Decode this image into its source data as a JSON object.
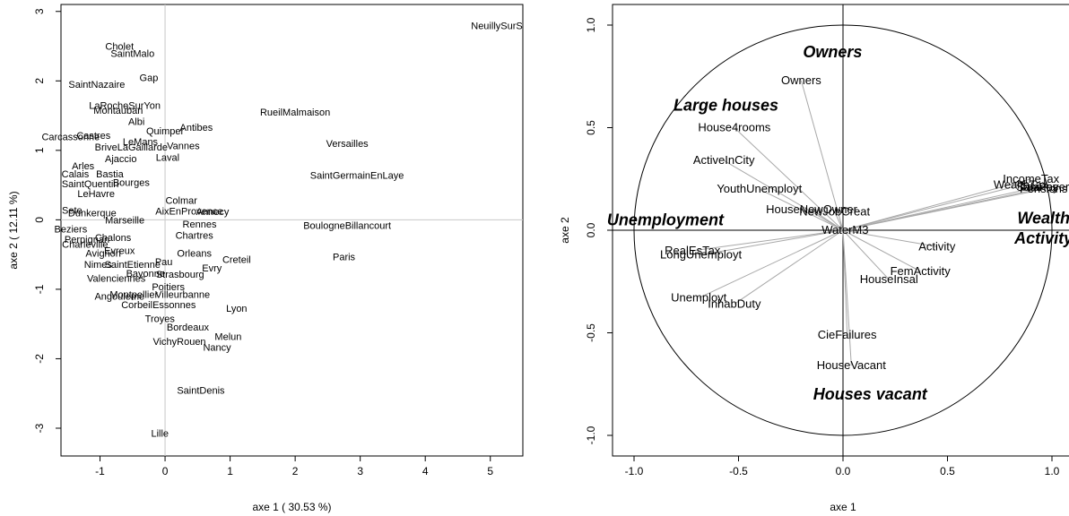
{
  "chart_data": [
    {
      "type": "scatter",
      "title": "",
      "xlabel": "axe 1 ( 30.53 %)",
      "ylabel": "axe 2 ( 12.11 %)",
      "xlim": [
        -1.6,
        5.5
      ],
      "ylim": [
        -3.4,
        3.1
      ],
      "xticks": [
        -1,
        0,
        1,
        2,
        3,
        4,
        5
      ],
      "yticks": [
        -3,
        -2,
        -1,
        0,
        1,
        2,
        3
      ],
      "reference_lines": {
        "x": 0,
        "y": 0,
        "color": "#c8c8c8"
      },
      "point_color": "#000000",
      "points": [
        {
          "label": "NeuillySurS",
          "x": 5.1,
          "y": 2.8
        },
        {
          "label": "Cholet",
          "x": -0.7,
          "y": 2.5
        },
        {
          "label": "SaintMalo",
          "x": -0.5,
          "y": 2.4
        },
        {
          "label": "Gap",
          "x": -0.25,
          "y": 2.05
        },
        {
          "label": "SaintNazaire",
          "x": -1.05,
          "y": 1.95
        },
        {
          "label": "LaRocheSurYon",
          "x": -0.62,
          "y": 1.65
        },
        {
          "label": "Montauban",
          "x": -0.72,
          "y": 1.58
        },
        {
          "label": "RueilMalmaison",
          "x": 2.0,
          "y": 1.55
        },
        {
          "label": "Albi",
          "x": -0.44,
          "y": 1.42
        },
        {
          "label": "Antibes",
          "x": 0.48,
          "y": 1.33
        },
        {
          "label": "Quimper",
          "x": 0.0,
          "y": 1.28
        },
        {
          "label": "Carcassonne",
          "x": -1.45,
          "y": 1.2
        },
        {
          "label": "Castres",
          "x": -1.1,
          "y": 1.22
        },
        {
          "label": "LeMans",
          "x": -0.38,
          "y": 1.13
        },
        {
          "label": "Vannes",
          "x": 0.28,
          "y": 1.07
        },
        {
          "label": "Versailles",
          "x": 2.8,
          "y": 1.1
        },
        {
          "label": "BriveLaGaillarde",
          "x": -0.52,
          "y": 1.05
        },
        {
          "label": "Laval",
          "x": 0.04,
          "y": 0.9
        },
        {
          "label": "Ajaccio",
          "x": -0.68,
          "y": 0.88
        },
        {
          "label": "Arles",
          "x": -1.26,
          "y": 0.78
        },
        {
          "label": "SaintGermainEnLaye",
          "x": 2.95,
          "y": 0.64
        },
        {
          "label": "Calais",
          "x": -1.38,
          "y": 0.66
        },
        {
          "label": "Bastia",
          "x": -0.85,
          "y": 0.66
        },
        {
          "label": "SaintQuentin",
          "x": -1.15,
          "y": 0.52
        },
        {
          "label": "Bourges",
          "x": -0.52,
          "y": 0.54
        },
        {
          "label": "LeHavre",
          "x": -1.06,
          "y": 0.38
        },
        {
          "label": "Beziers",
          "x": -1.45,
          "y": -0.13
        },
        {
          "label": "Sete",
          "x": -1.43,
          "y": 0.14
        },
        {
          "label": "Dunkerque",
          "x": -1.12,
          "y": 0.1
        },
        {
          "label": "Colmar",
          "x": 0.25,
          "y": 0.28
        },
        {
          "label": "AixEnProvence",
          "x": 0.37,
          "y": 0.13
        },
        {
          "label": "Annecy",
          "x": 0.73,
          "y": 0.12
        },
        {
          "label": "Marseille",
          "x": -0.62,
          "y": 0.0
        },
        {
          "label": "Rennes",
          "x": 0.53,
          "y": -0.06
        },
        {
          "label": "BoulogneBillancourt",
          "x": 2.8,
          "y": -0.08
        },
        {
          "label": "Perpignan",
          "x": -1.2,
          "y": -0.28
        },
        {
          "label": "Charleville",
          "x": -1.23,
          "y": -0.35
        },
        {
          "label": "Chalons",
          "x": -0.8,
          "y": -0.25
        },
        {
          "label": "Chartres",
          "x": 0.45,
          "y": -0.22
        },
        {
          "label": "Avignon",
          "x": -0.95,
          "y": -0.48
        },
        {
          "label": "Evreux",
          "x": -0.7,
          "y": -0.44
        },
        {
          "label": "Orleans",
          "x": 0.45,
          "y": -0.48
        },
        {
          "label": "Creteil",
          "x": 1.1,
          "y": -0.57
        },
        {
          "label": "Paris",
          "x": 2.75,
          "y": -0.53
        },
        {
          "label": "Nimes",
          "x": -1.03,
          "y": -0.64
        },
        {
          "label": "SaintEtienne",
          "x": -0.5,
          "y": -0.64
        },
        {
          "label": "Pau",
          "x": -0.02,
          "y": -0.6
        },
        {
          "label": "Evry",
          "x": 0.72,
          "y": -0.69
        },
        {
          "label": "Bayonne",
          "x": -0.3,
          "y": -0.77
        },
        {
          "label": "Strasbourg",
          "x": 0.23,
          "y": -0.78
        },
        {
          "label": "Valenciennes",
          "x": -0.75,
          "y": -0.84
        },
        {
          "label": "Poitiers",
          "x": 0.05,
          "y": -0.96
        },
        {
          "label": "Montpellier",
          "x": -0.48,
          "y": -1.07
        },
        {
          "label": "Angouleme",
          "x": -0.7,
          "y": -1.1
        },
        {
          "label": "Villeurbanne",
          "x": 0.27,
          "y": -1.07
        },
        {
          "label": "CorbeilEssonnes",
          "x": -0.1,
          "y": -1.22
        },
        {
          "label": "Lyon",
          "x": 1.1,
          "y": -1.27
        },
        {
          "label": "Troyes",
          "x": -0.08,
          "y": -1.42
        },
        {
          "label": "Bordeaux",
          "x": 0.35,
          "y": -1.54
        },
        {
          "label": "Melun",
          "x": 0.97,
          "y": -1.68
        },
        {
          "label": "VichyRouen",
          "x": 0.22,
          "y": -1.75
        },
        {
          "label": "Nancy",
          "x": 0.8,
          "y": -1.83
        },
        {
          "label": "SaintDenis",
          "x": 0.55,
          "y": -2.45
        },
        {
          "label": "Lille",
          "x": -0.08,
          "y": -3.07
        }
      ]
    },
    {
      "type": "scatter",
      "title": "",
      "xlabel": "axe 1",
      "ylabel": "axe 2",
      "xlim": [
        -1.0,
        1.0
      ],
      "ylim": [
        -1.0,
        1.0
      ],
      "xticks": [
        "-1.0",
        "-0.5",
        "0.0",
        "0.5",
        "1.0"
      ],
      "yticks": [
        "-1.0",
        "-0.5",
        "0.0",
        "0.5",
        "1.0"
      ],
      "unit_circle": true,
      "arrow_color": "#a8a8a8",
      "variables": [
        {
          "label": "Owners",
          "x": -0.2,
          "y": 0.73
        },
        {
          "label": "House4rooms",
          "x": -0.52,
          "y": 0.5
        },
        {
          "label": "ActiveInCity",
          "x": -0.57,
          "y": 0.34
        },
        {
          "label": "YouthUnemployt",
          "x": -0.4,
          "y": 0.2
        },
        {
          "label": "HouseNewOwner",
          "x": -0.15,
          "y": 0.1
        },
        {
          "label": "NewJobCreat",
          "x": -0.04,
          "y": 0.09
        },
        {
          "label": "WaterM3",
          "x": 0.01,
          "y": 0.0
        },
        {
          "label": "RealEsTax",
          "x": -0.72,
          "y": -0.1
        },
        {
          "label": "LongUnemployt",
          "x": -0.68,
          "y": -0.12
        },
        {
          "label": "Unemployt",
          "x": -0.69,
          "y": -0.33
        },
        {
          "label": "InhabDuty",
          "x": -0.52,
          "y": -0.36
        },
        {
          "label": "CieFailures",
          "x": 0.02,
          "y": -0.51
        },
        {
          "label": "HouseVacant",
          "x": 0.04,
          "y": -0.66
        },
        {
          "label": "HouseInsal",
          "x": 0.22,
          "y": -0.24
        },
        {
          "label": "FemActivity",
          "x": 0.37,
          "y": -0.2
        },
        {
          "label": "Activity",
          "x": 0.45,
          "y": -0.08
        },
        {
          "label": "IncomeTax",
          "x": 0.9,
          "y": 0.25
        },
        {
          "label": "WealthTax",
          "x": 0.85,
          "y": 0.22
        },
        {
          "label": "Salaries",
          "x": 0.93,
          "y": 0.21
        },
        {
          "label": "Pensions",
          "x": 0.96,
          "y": 0.2
        },
        {
          "label": "TaxPayers",
          "x": 0.98,
          "y": 0.21
        }
      ],
      "annotations": [
        {
          "text": "Owners",
          "x": -0.05,
          "y": 0.87
        },
        {
          "text": "Large houses",
          "x": -0.56,
          "y": 0.61
        },
        {
          "text": "Unemployment",
          "x": -0.85,
          "y": 0.05
        },
        {
          "text": "Wealth",
          "x": 0.96,
          "y": 0.06
        },
        {
          "text": "Activity",
          "x": 0.96,
          "y": -0.04
        },
        {
          "text": "Houses vacant",
          "x": 0.13,
          "y": -0.8
        }
      ]
    }
  ]
}
